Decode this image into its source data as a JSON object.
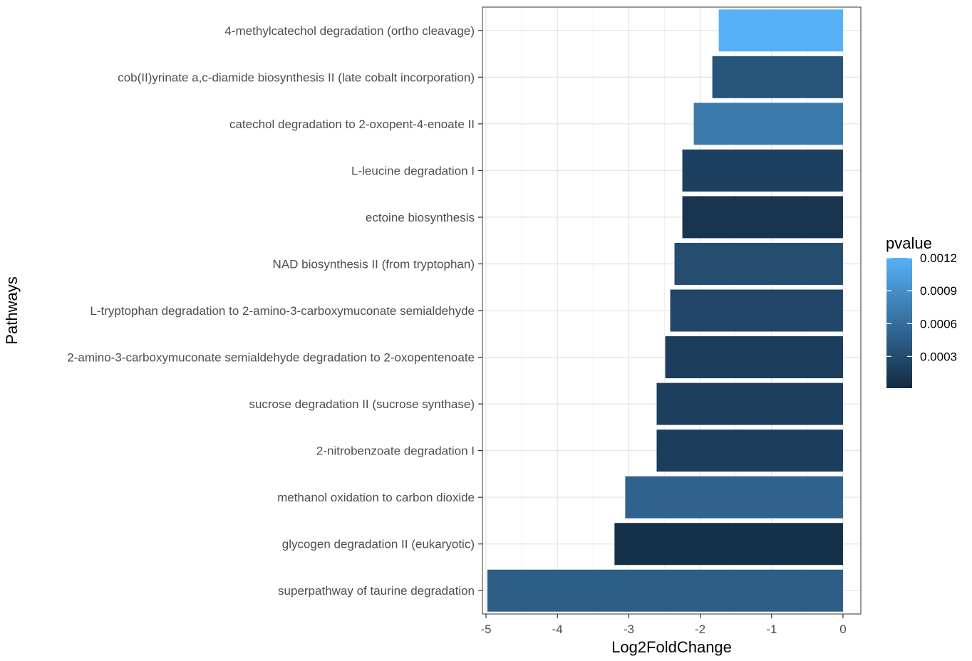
{
  "chart_data": {
    "type": "bar",
    "orientation": "horizontal",
    "xlabel": "Log2FoldChange",
    "ylabel": "Pathways",
    "xlim": [
      -5.05,
      0.25
    ],
    "x_ticks": [
      -5,
      -4,
      -3,
      -2,
      -1,
      0
    ],
    "x_tick_labels": [
      "-5",
      "-4",
      "-3",
      "-2",
      "-1",
      "0"
    ],
    "grid": true,
    "legend": {
      "title": "pvalue",
      "placement": "right",
      "type": "colorbar",
      "range": [
        1e-05,
        0.0012
      ],
      "ticks": [
        0.0003,
        0.0006,
        0.0009,
        0.0012
      ],
      "tick_labels": [
        "0.0003",
        "0.0006",
        "0.0009",
        "0.0012"
      ],
      "color_low": "#132B43",
      "color_high": "#56B1F7"
    },
    "bars": [
      {
        "category": "4-methylcatechol degradation (ortho cleavage)",
        "value": -1.74,
        "pvalue": 0.00121
      },
      {
        "category": "cob(II)yrinate a,c-diamide biosynthesis II (late cobalt incorporation)",
        "value": -1.83,
        "pvalue": 0.00037
      },
      {
        "category": "catechol degradation to 2-oxopent-4-enoate II",
        "value": -2.09,
        "pvalue": 0.0007
      },
      {
        "category": "L-leucine degradation I",
        "value": -2.25,
        "pvalue": 0.0002
      },
      {
        "category": "ectoine biosynthesis",
        "value": -2.25,
        "pvalue": 9e-05
      },
      {
        "category": "NAD biosynthesis II (from tryptophan)",
        "value": -2.36,
        "pvalue": 0.00031
      },
      {
        "category": "L-tryptophan degradation to 2-amino-3-carboxymuconate semialdehyde",
        "value": -2.42,
        "pvalue": 0.00025
      },
      {
        "category": "2-amino-3-carboxymuconate semialdehyde degradation to 2-oxopentenoate",
        "value": -2.49,
        "pvalue": 0.00017
      },
      {
        "category": "sucrose degradation II (sucrose synthase)",
        "value": -2.61,
        "pvalue": 0.00018
      },
      {
        "category": "2-nitrobenzoate degradation I",
        "value": -2.61,
        "pvalue": 0.00017
      },
      {
        "category": "methanol oxidation to carbon dioxide",
        "value": -3.05,
        "pvalue": 0.0005
      },
      {
        "category": "glycogen degradation II (eukaryotic)",
        "value": -3.2,
        "pvalue": 5e-05
      },
      {
        "category": "superpathway of taurine degradation",
        "value": -4.98,
        "pvalue": 0.00046
      }
    ]
  }
}
